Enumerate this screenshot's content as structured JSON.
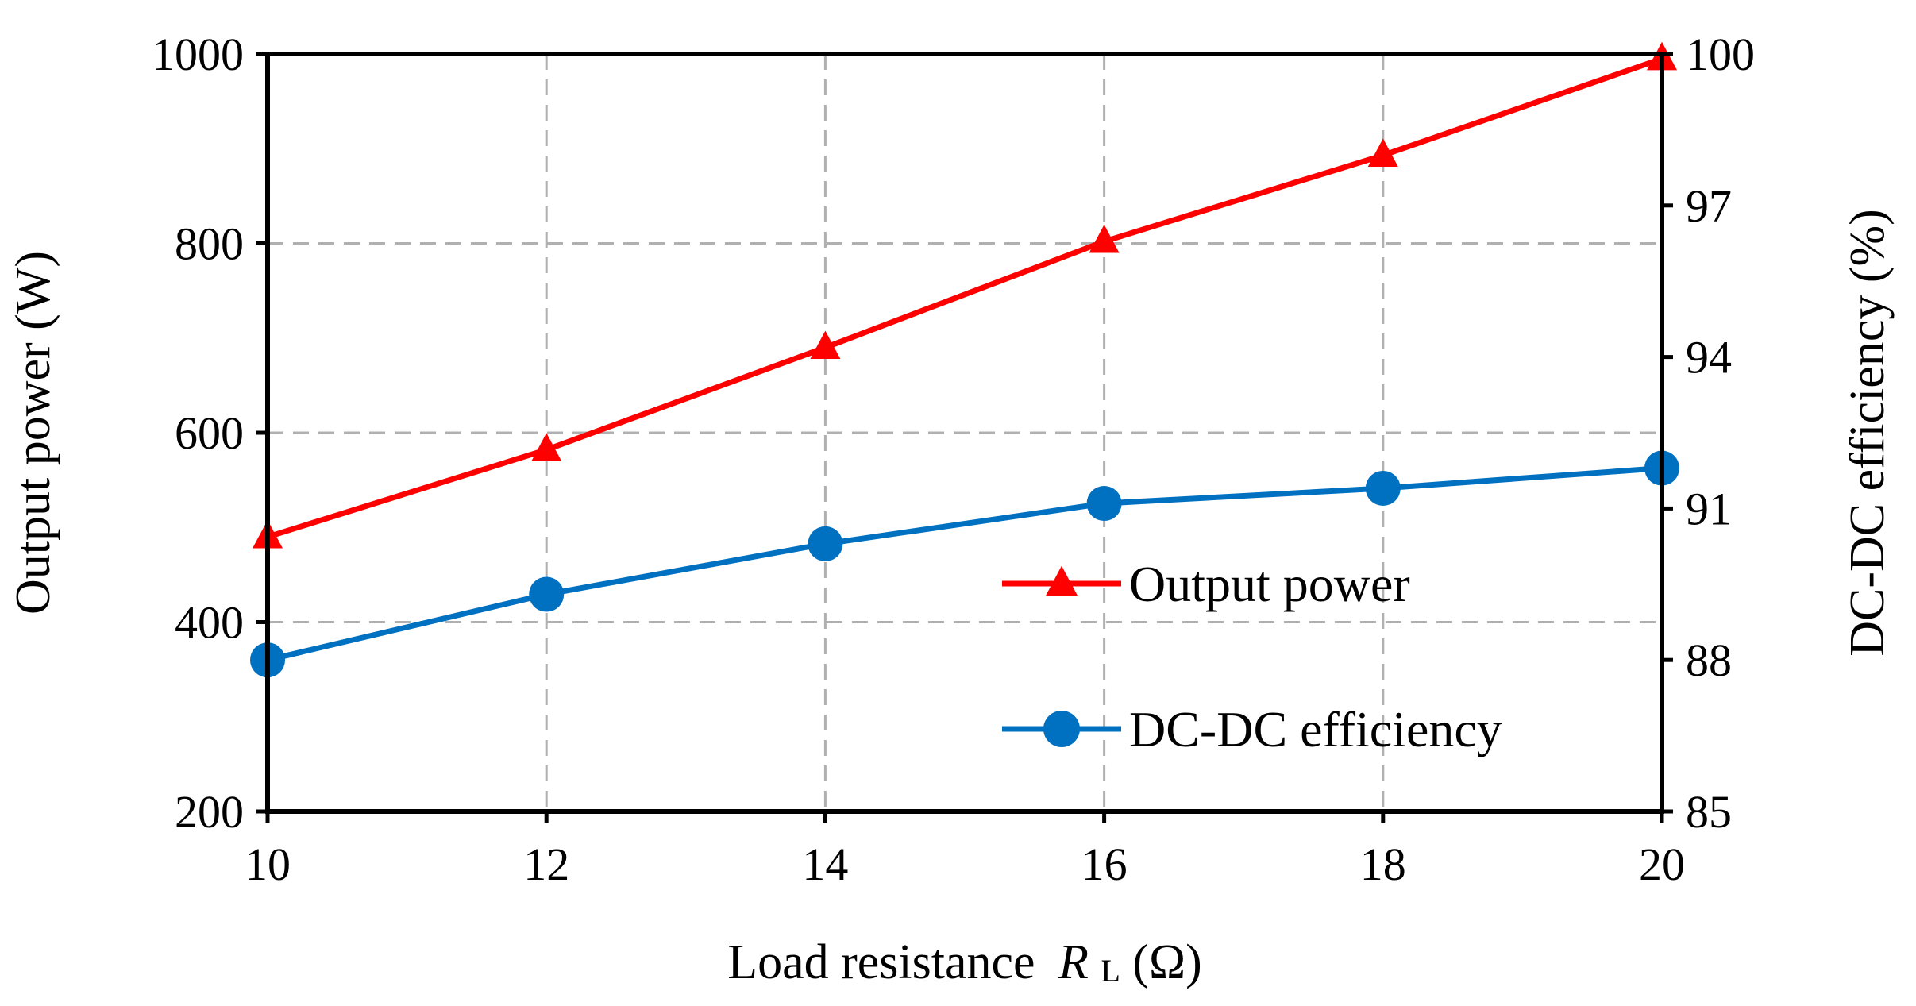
{
  "chart_data": {
    "type": "line",
    "title": "",
    "xlabel": "Load resistance",
    "xlabel_var": "R",
    "xlabel_sub": "L",
    "xlabel_unit": "(Ω)",
    "ylabel_left": "Output power (W)",
    "ylabel_right": "DC-DC efficiency (%)",
    "x": [
      10,
      12,
      14,
      16,
      18,
      20
    ],
    "x_ticks": [
      10,
      12,
      14,
      16,
      18,
      20
    ],
    "xlim": [
      10,
      20
    ],
    "y_left_ticks": [
      200,
      400,
      600,
      800,
      1000
    ],
    "ylim_left": [
      200,
      1000
    ],
    "y_right_ticks": [
      85,
      88,
      91,
      94,
      97,
      100
    ],
    "ylim_right": [
      85,
      100
    ],
    "grid": true,
    "legend_position": "center-right",
    "series": [
      {
        "name": "Output power",
        "axis": "left",
        "marker": "triangle",
        "color": "#ff0000",
        "values": [
          490,
          582,
          690,
          802,
          893,
          995
        ]
      },
      {
        "name": "DC-DC efficiency",
        "axis": "right",
        "marker": "circle",
        "color": "#0070c0",
        "values": [
          88.0,
          89.3,
          90.3,
          91.1,
          91.4,
          91.8
        ]
      }
    ]
  }
}
